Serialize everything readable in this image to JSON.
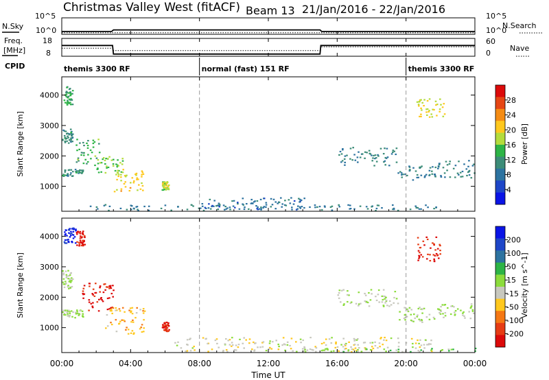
{
  "header": {
    "station": "Christmas Valley West (fitACF)",
    "beam": "Beam 13",
    "date_range": "21/Jan/2016 - 22/Jan/2016"
  },
  "chart_data": [
    {
      "type": "line",
      "name": "noise",
      "left_label": "N.Sky",
      "right_label": "N.Search",
      "left_ticks": [
        "10^5",
        "10^0"
      ],
      "right_ticks": [
        "10^5",
        "10^0"
      ],
      "sky_level_log": [
        [
          0,
          0.9
        ],
        [
          2.9,
          0.9
        ],
        [
          3.0,
          1.4
        ],
        [
          15.0,
          1.4
        ],
        [
          15.1,
          0.9
        ],
        [
          24,
          0.9
        ]
      ],
      "search_level_log": [
        [
          0,
          0.5
        ],
        [
          24,
          0.5
        ]
      ],
      "ylim": [
        0,
        5
      ]
    },
    {
      "type": "line",
      "name": "frequency",
      "left_label": "Freq.",
      "left_unit": "[MHz]",
      "right_label": "Nave",
      "left_ticks": [
        "18",
        "8"
      ],
      "right_ticks": [
        "60",
        "0"
      ],
      "freq_mhz": [
        [
          0,
          14.3
        ],
        [
          2.95,
          14.3
        ],
        [
          3.0,
          9.3
        ],
        [
          15.0,
          9.3
        ],
        [
          15.05,
          14.3
        ],
        [
          24,
          14.3
        ]
      ],
      "nave": [
        [
          0,
          28
        ],
        [
          2.95,
          28
        ],
        [
          3.0,
          20
        ],
        [
          15.0,
          20
        ],
        [
          15.05,
          33
        ],
        [
          24,
          33
        ]
      ],
      "ylim": [
        8,
        18
      ]
    },
    {
      "type": "table",
      "name": "cpid",
      "label": "CPID",
      "segments": [
        {
          "start": 0.0,
          "end": 8.0,
          "label": "themis 3300 RF"
        },
        {
          "start": 8.0,
          "end": 20.0,
          "label": "normal (fast) 151 RF"
        },
        {
          "start": 20.0,
          "end": 24.0,
          "label": "themis 3300 RF"
        }
      ]
    },
    {
      "type": "heatmap",
      "name": "power",
      "ylabel": "Slant Range [km]",
      "yticks": [
        "4000",
        "3000",
        "2000",
        "1000"
      ],
      "ylim": [
        180,
        4600
      ],
      "colorbar": {
        "label": "Power [dB]",
        "min": 0,
        "max": 32,
        "ticks": [
          "28",
          "24",
          "20",
          "16",
          "12",
          "8",
          "4"
        ],
        "colors": [
          "#0a14e6",
          "#1e46c8",
          "#2d73a0",
          "#3c8c78",
          "#2db446",
          "#b4dc3c",
          "#ffc81e",
          "#f58c14",
          "#e64614",
          "#dc0a0a"
        ]
      },
      "scatter_regions": [
        {
          "t0": 0.0,
          "t1": 0.6,
          "r0": 2400,
          "r1": 2900,
          "value": 11
        },
        {
          "t0": 0.1,
          "t1": 0.6,
          "r0": 3700,
          "r1": 4300,
          "value": 13
        },
        {
          "t0": 0.0,
          "t1": 1.2,
          "r0": 1350,
          "r1": 1600,
          "value": 11
        },
        {
          "t0": 0.8,
          "t1": 2.2,
          "r0": 1700,
          "r1": 2600,
          "value": 14
        },
        {
          "t0": 2.0,
          "t1": 3.5,
          "r0": 1400,
          "r1": 2000,
          "value": 16
        },
        {
          "t0": 3.0,
          "t1": 4.8,
          "r0": 850,
          "r1": 1600,
          "value": 20
        },
        {
          "t0": 5.8,
          "t1": 6.2,
          "r0": 900,
          "r1": 1200,
          "value": 18
        },
        {
          "t0": 16.0,
          "t1": 19.5,
          "r0": 1700,
          "r1": 2300,
          "value": 10
        },
        {
          "t0": 19.5,
          "t1": 21.8,
          "r0": 1200,
          "r1": 1700,
          "value": 10
        },
        {
          "t0": 21.8,
          "t1": 24.0,
          "r0": 1300,
          "r1": 1900,
          "value": 10
        },
        {
          "t0": 20.5,
          "t1": 22.2,
          "r0": 3300,
          "r1": 3900,
          "value": 19
        },
        {
          "t0": 1.5,
          "t1": 21.8,
          "r0": 200,
          "r1": 420,
          "value": 9
        },
        {
          "t0": 8.0,
          "t1": 14.5,
          "r0": 250,
          "r1": 650,
          "value": 8
        }
      ]
    },
    {
      "type": "heatmap",
      "name": "velocity",
      "ylabel": "Slant Range [km]",
      "yticks": [
        "4000",
        "3000",
        "2000",
        "1000"
      ],
      "ylim": [
        180,
        4600
      ],
      "colorbar": {
        "label": "Velocity [m s^-1]",
        "min": -250,
        "max": 250,
        "ticks": [
          "200",
          "100",
          "50",
          "15",
          "-15",
          "-50",
          "-100",
          "-200"
        ],
        "colors": [
          "#dc0a0a",
          "#e63c14",
          "#f57814",
          "#ffc81e",
          "#c8c8be",
          "#8cdc3c",
          "#2db446",
          "#2d73a0",
          "#1e46c8",
          "#0a14e6"
        ]
      },
      "scatter_regions": [
        {
          "t0": 0.0,
          "t1": 0.6,
          "r0": 2300,
          "r1": 2900,
          "value": 0
        },
        {
          "t0": 0.1,
          "t1": 0.8,
          "r0": 3800,
          "r1": 4300,
          "value": 210
        },
        {
          "t0": 0.8,
          "t1": 1.3,
          "r0": 3700,
          "r1": 4200,
          "value": -210
        },
        {
          "t0": 0.0,
          "t1": 1.2,
          "r0": 1350,
          "r1": 1600,
          "value": 0
        },
        {
          "t0": 1.0,
          "t1": 3.0,
          "r0": 1500,
          "r1": 2500,
          "value": -210
        },
        {
          "t0": 2.5,
          "t1": 4.8,
          "r0": 800,
          "r1": 1700,
          "value": -80
        },
        {
          "t0": 5.8,
          "t1": 6.2,
          "r0": 900,
          "r1": 1200,
          "value": -200
        },
        {
          "t0": 16.0,
          "t1": 19.5,
          "r0": 1700,
          "r1": 2300,
          "value": 0
        },
        {
          "t0": 19.5,
          "t1": 21.8,
          "r0": 1200,
          "r1": 1700,
          "value": 0
        },
        {
          "t0": 21.8,
          "t1": 24.0,
          "r0": 1300,
          "r1": 1800,
          "value": 0
        },
        {
          "t0": 20.5,
          "t1": 22.0,
          "r0": 3200,
          "r1": 4000,
          "value": -200
        },
        {
          "t0": 6.5,
          "t1": 21.5,
          "r0": 200,
          "r1": 700,
          "value": -30
        },
        {
          "t0": 14.0,
          "t1": 24.0,
          "r0": 200,
          "r1": 350,
          "value": 30
        }
      ]
    }
  ],
  "xaxis": {
    "ticks": [
      {
        "t": 0,
        "label": "00:00"
      },
      {
        "t": 4,
        "label": "04:00"
      },
      {
        "t": 8,
        "label": "08:00"
      },
      {
        "t": 12,
        "label": "12:00"
      },
      {
        "t": 16,
        "label": "16:00"
      },
      {
        "t": 20,
        "label": "20:00"
      },
      {
        "t": 24,
        "label": "00:00"
      }
    ],
    "label": "Time UT",
    "range": [
      0,
      24
    ]
  },
  "dashed_lines": [
    8,
    20
  ]
}
